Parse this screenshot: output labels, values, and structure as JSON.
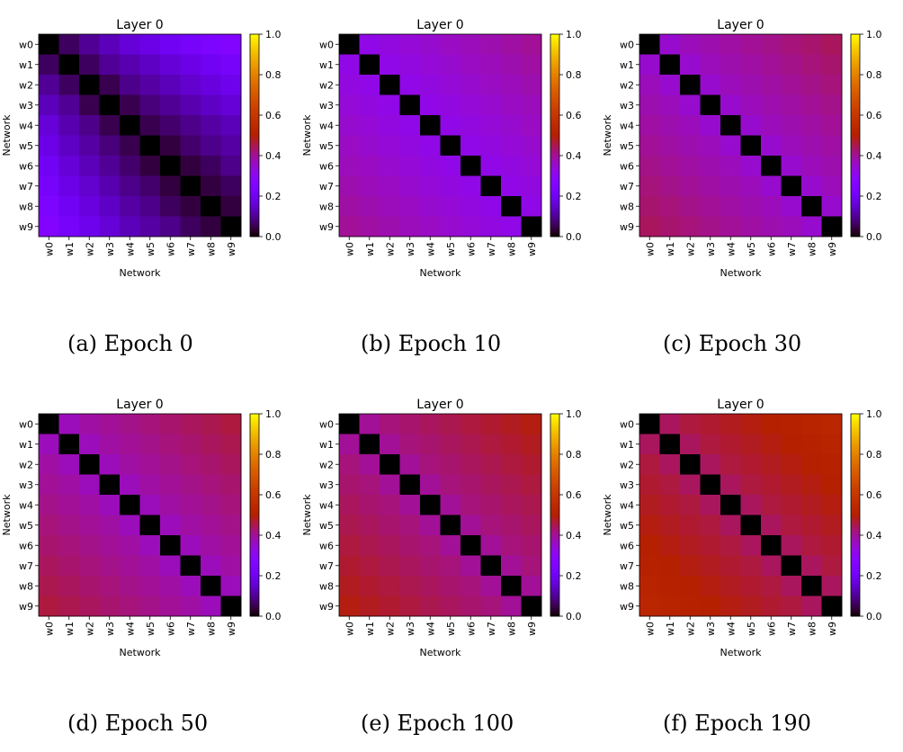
{
  "chart_data": [
    {
      "type": "heatmap",
      "title": "Layer 0",
      "xlabel": "Network",
      "ylabel": "Network",
      "labels": [
        "w0",
        "w1",
        "w2",
        "w3",
        "w4",
        "w5",
        "w6",
        "w7",
        "w8",
        "w9"
      ],
      "colorbar": {
        "colormap": "gnuplot",
        "range": [
          0.0,
          1.0
        ],
        "ticks": [
          "0.0",
          "0.2",
          "0.4",
          "0.6",
          "0.8",
          "1.0"
        ]
      },
      "caption": "(a) Epoch 0",
      "matrix": [
        [
          0.0,
          0.06,
          0.1,
          0.13,
          0.16,
          0.18,
          0.2,
          0.22,
          0.24,
          0.26
        ],
        [
          0.06,
          0.0,
          0.06,
          0.1,
          0.12,
          0.14,
          0.16,
          0.18,
          0.2,
          0.22
        ],
        [
          0.1,
          0.06,
          0.0,
          0.05,
          0.09,
          0.11,
          0.13,
          0.15,
          0.17,
          0.19
        ],
        [
          0.13,
          0.1,
          0.05,
          0.0,
          0.05,
          0.08,
          0.1,
          0.12,
          0.14,
          0.16
        ],
        [
          0.16,
          0.12,
          0.09,
          0.05,
          0.0,
          0.05,
          0.07,
          0.09,
          0.11,
          0.13
        ],
        [
          0.18,
          0.14,
          0.11,
          0.08,
          0.05,
          0.0,
          0.04,
          0.07,
          0.09,
          0.11
        ],
        [
          0.2,
          0.16,
          0.13,
          0.1,
          0.07,
          0.04,
          0.0,
          0.04,
          0.06,
          0.09
        ],
        [
          0.22,
          0.18,
          0.15,
          0.12,
          0.09,
          0.07,
          0.04,
          0.0,
          0.04,
          0.06
        ],
        [
          0.24,
          0.2,
          0.17,
          0.14,
          0.11,
          0.09,
          0.06,
          0.04,
          0.0,
          0.04
        ],
        [
          0.26,
          0.22,
          0.19,
          0.16,
          0.13,
          0.11,
          0.09,
          0.06,
          0.04,
          0.0
        ]
      ]
    },
    {
      "type": "heatmap",
      "title": "Layer 0",
      "xlabel": "Network",
      "ylabel": "Network",
      "labels": [
        "w0",
        "w1",
        "w2",
        "w3",
        "w4",
        "w5",
        "w6",
        "w7",
        "w8",
        "w9"
      ],
      "colorbar": {
        "colormap": "gnuplot",
        "range": [
          0.0,
          1.0
        ],
        "ticks": [
          "0.0",
          "0.2",
          "0.4",
          "0.6",
          "0.8",
          "1.0"
        ]
      },
      "caption": "(b) Epoch 10",
      "matrix": [
        [
          0.0,
          0.32,
          0.33,
          0.34,
          0.35,
          0.36,
          0.37,
          0.38,
          0.39,
          0.4
        ],
        [
          0.32,
          0.0,
          0.32,
          0.33,
          0.34,
          0.35,
          0.36,
          0.37,
          0.38,
          0.39
        ],
        [
          0.33,
          0.32,
          0.0,
          0.32,
          0.33,
          0.34,
          0.35,
          0.36,
          0.37,
          0.38
        ],
        [
          0.34,
          0.33,
          0.32,
          0.0,
          0.32,
          0.33,
          0.34,
          0.35,
          0.36,
          0.37
        ],
        [
          0.35,
          0.34,
          0.33,
          0.32,
          0.0,
          0.32,
          0.33,
          0.34,
          0.35,
          0.36
        ],
        [
          0.36,
          0.35,
          0.34,
          0.33,
          0.32,
          0.0,
          0.32,
          0.33,
          0.34,
          0.35
        ],
        [
          0.37,
          0.36,
          0.35,
          0.34,
          0.33,
          0.32,
          0.0,
          0.32,
          0.33,
          0.34
        ],
        [
          0.38,
          0.37,
          0.36,
          0.35,
          0.34,
          0.33,
          0.32,
          0.0,
          0.32,
          0.33
        ],
        [
          0.39,
          0.38,
          0.37,
          0.36,
          0.35,
          0.34,
          0.33,
          0.32,
          0.0,
          0.32
        ],
        [
          0.4,
          0.39,
          0.38,
          0.37,
          0.36,
          0.35,
          0.34,
          0.33,
          0.32,
          0.0
        ]
      ]
    },
    {
      "type": "heatmap",
      "title": "Layer 0",
      "xlabel": "Network",
      "ylabel": "Network",
      "labels": [
        "w0",
        "w1",
        "w2",
        "w3",
        "w4",
        "w5",
        "w6",
        "w7",
        "w8",
        "w9"
      ],
      "colorbar": {
        "colormap": "gnuplot",
        "range": [
          0.0,
          1.0
        ],
        "ticks": [
          "0.0",
          "0.2",
          "0.4",
          "0.6",
          "0.8",
          "1.0"
        ]
      },
      "caption": "(c) Epoch 30",
      "matrix": [
        [
          0.0,
          0.35,
          0.37,
          0.38,
          0.39,
          0.4,
          0.41,
          0.42,
          0.43,
          0.44
        ],
        [
          0.35,
          0.0,
          0.35,
          0.37,
          0.38,
          0.39,
          0.4,
          0.41,
          0.42,
          0.43
        ],
        [
          0.37,
          0.35,
          0.0,
          0.35,
          0.37,
          0.38,
          0.39,
          0.4,
          0.41,
          0.42
        ],
        [
          0.38,
          0.37,
          0.35,
          0.0,
          0.35,
          0.37,
          0.38,
          0.39,
          0.4,
          0.41
        ],
        [
          0.39,
          0.38,
          0.37,
          0.35,
          0.0,
          0.35,
          0.37,
          0.38,
          0.39,
          0.4
        ],
        [
          0.4,
          0.39,
          0.38,
          0.37,
          0.35,
          0.0,
          0.35,
          0.37,
          0.38,
          0.39
        ],
        [
          0.41,
          0.4,
          0.39,
          0.38,
          0.37,
          0.35,
          0.0,
          0.35,
          0.37,
          0.38
        ],
        [
          0.42,
          0.41,
          0.4,
          0.39,
          0.38,
          0.37,
          0.35,
          0.0,
          0.35,
          0.37
        ],
        [
          0.43,
          0.42,
          0.41,
          0.4,
          0.39,
          0.38,
          0.37,
          0.35,
          0.0,
          0.35
        ],
        [
          0.44,
          0.43,
          0.42,
          0.41,
          0.4,
          0.39,
          0.38,
          0.37,
          0.35,
          0.0
        ]
      ]
    },
    {
      "type": "heatmap",
      "title": "Layer 0",
      "xlabel": "Network",
      "ylabel": "Network",
      "labels": [
        "w0",
        "w1",
        "w2",
        "w3",
        "w4",
        "w5",
        "w6",
        "w7",
        "w8",
        "w9"
      ],
      "colorbar": {
        "colormap": "gnuplot",
        "range": [
          0.0,
          1.0
        ],
        "ticks": [
          "0.0",
          "0.2",
          "0.4",
          "0.6",
          "0.8",
          "1.0"
        ]
      },
      "caption": "(d) Epoch 50",
      "matrix": [
        [
          0.0,
          0.37,
          0.39,
          0.4,
          0.41,
          0.42,
          0.43,
          0.44,
          0.45,
          0.46
        ],
        [
          0.37,
          0.0,
          0.37,
          0.39,
          0.4,
          0.41,
          0.42,
          0.43,
          0.44,
          0.45
        ],
        [
          0.39,
          0.37,
          0.0,
          0.37,
          0.39,
          0.4,
          0.41,
          0.42,
          0.43,
          0.44
        ],
        [
          0.4,
          0.39,
          0.37,
          0.0,
          0.37,
          0.39,
          0.4,
          0.41,
          0.42,
          0.43
        ],
        [
          0.41,
          0.4,
          0.39,
          0.37,
          0.0,
          0.37,
          0.39,
          0.4,
          0.41,
          0.42
        ],
        [
          0.42,
          0.41,
          0.4,
          0.39,
          0.37,
          0.0,
          0.37,
          0.39,
          0.4,
          0.41
        ],
        [
          0.43,
          0.42,
          0.41,
          0.4,
          0.39,
          0.37,
          0.0,
          0.37,
          0.39,
          0.4
        ],
        [
          0.44,
          0.43,
          0.42,
          0.41,
          0.4,
          0.39,
          0.37,
          0.0,
          0.37,
          0.39
        ],
        [
          0.45,
          0.44,
          0.43,
          0.42,
          0.41,
          0.4,
          0.39,
          0.37,
          0.0,
          0.37
        ],
        [
          0.46,
          0.45,
          0.44,
          0.43,
          0.42,
          0.41,
          0.4,
          0.39,
          0.37,
          0.0
        ]
      ]
    },
    {
      "type": "heatmap",
      "title": "Layer 0",
      "xlabel": "Network",
      "ylabel": "Network",
      "labels": [
        "w0",
        "w1",
        "w2",
        "w3",
        "w4",
        "w5",
        "w6",
        "w7",
        "w8",
        "w9"
      ],
      "colorbar": {
        "colormap": "gnuplot",
        "range": [
          0.0,
          1.0
        ],
        "ticks": [
          "0.0",
          "0.2",
          "0.4",
          "0.6",
          "0.8",
          "1.0"
        ]
      },
      "caption": "(e) Epoch 100",
      "matrix": [
        [
          0.0,
          0.4,
          0.42,
          0.43,
          0.44,
          0.45,
          0.46,
          0.47,
          0.48,
          0.49
        ],
        [
          0.4,
          0.0,
          0.4,
          0.42,
          0.43,
          0.44,
          0.45,
          0.46,
          0.47,
          0.48
        ],
        [
          0.42,
          0.4,
          0.0,
          0.4,
          0.42,
          0.43,
          0.44,
          0.45,
          0.46,
          0.47
        ],
        [
          0.43,
          0.42,
          0.4,
          0.0,
          0.4,
          0.42,
          0.43,
          0.44,
          0.45,
          0.46
        ],
        [
          0.44,
          0.43,
          0.42,
          0.4,
          0.0,
          0.4,
          0.42,
          0.43,
          0.44,
          0.45
        ],
        [
          0.45,
          0.44,
          0.43,
          0.42,
          0.4,
          0.0,
          0.4,
          0.42,
          0.43,
          0.44
        ],
        [
          0.46,
          0.45,
          0.44,
          0.43,
          0.42,
          0.4,
          0.0,
          0.4,
          0.42,
          0.43
        ],
        [
          0.47,
          0.46,
          0.45,
          0.44,
          0.43,
          0.42,
          0.4,
          0.0,
          0.4,
          0.42
        ],
        [
          0.48,
          0.47,
          0.46,
          0.45,
          0.44,
          0.43,
          0.42,
          0.4,
          0.0,
          0.4
        ],
        [
          0.49,
          0.48,
          0.47,
          0.46,
          0.45,
          0.44,
          0.43,
          0.42,
          0.4,
          0.0
        ]
      ]
    },
    {
      "type": "heatmap",
      "title": "Layer 0",
      "xlabel": "Network",
      "ylabel": "Network",
      "labels": [
        "w0",
        "w1",
        "w2",
        "w3",
        "w4",
        "w5",
        "w6",
        "w7",
        "w8",
        "w9"
      ],
      "colorbar": {
        "colormap": "gnuplot",
        "range": [
          0.0,
          1.0
        ],
        "ticks": [
          "0.0",
          "0.2",
          "0.4",
          "0.6",
          "0.8",
          "1.0"
        ]
      },
      "caption": "(f) Epoch 190",
      "matrix": [
        [
          0.0,
          0.44,
          0.46,
          0.47,
          0.48,
          0.49,
          0.5,
          0.51,
          0.52,
          0.53
        ],
        [
          0.44,
          0.0,
          0.44,
          0.46,
          0.47,
          0.48,
          0.49,
          0.5,
          0.51,
          0.52
        ],
        [
          0.46,
          0.44,
          0.0,
          0.44,
          0.46,
          0.47,
          0.48,
          0.49,
          0.5,
          0.51
        ],
        [
          0.47,
          0.46,
          0.44,
          0.0,
          0.44,
          0.46,
          0.47,
          0.48,
          0.49,
          0.5
        ],
        [
          0.48,
          0.47,
          0.46,
          0.44,
          0.0,
          0.44,
          0.46,
          0.47,
          0.48,
          0.49
        ],
        [
          0.49,
          0.48,
          0.47,
          0.46,
          0.44,
          0.0,
          0.44,
          0.46,
          0.47,
          0.48
        ],
        [
          0.5,
          0.49,
          0.48,
          0.47,
          0.46,
          0.44,
          0.0,
          0.44,
          0.46,
          0.47
        ],
        [
          0.51,
          0.5,
          0.49,
          0.48,
          0.47,
          0.46,
          0.44,
          0.0,
          0.44,
          0.46
        ],
        [
          0.52,
          0.51,
          0.5,
          0.49,
          0.48,
          0.47,
          0.46,
          0.44,
          0.0,
          0.44
        ],
        [
          0.53,
          0.52,
          0.51,
          0.5,
          0.49,
          0.48,
          0.47,
          0.46,
          0.44,
          0.0
        ]
      ]
    }
  ]
}
